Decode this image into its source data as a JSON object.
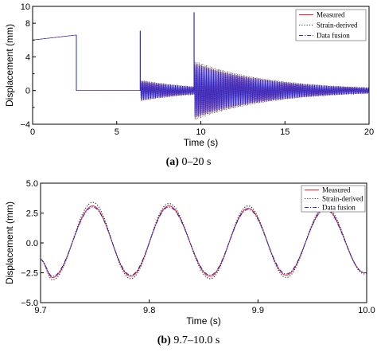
{
  "chart_data": [
    {
      "type": "line",
      "xlabel": "Time (s)",
      "ylabel": "Displacement (mm)",
      "xlim": [
        0,
        20
      ],
      "ylim": [
        -4,
        10
      ],
      "xticks": [
        "0",
        "5",
        "10",
        "15",
        "20"
      ],
      "yticks": [
        "-4",
        "0",
        "4",
        "8"
      ],
      "extra_ytick": "10",
      "y_minor_ticks": [
        "-2",
        "2",
        "6"
      ],
      "caption_label": "(a)",
      "caption_text": " 0–20 s",
      "legend_position": "top-right",
      "series": [
        {
          "name": "Measured",
          "color": "#e8282d",
          "style": "solid"
        },
        {
          "name": "Strain-derived",
          "color": "#333333",
          "style": "dotted"
        },
        {
          "name": "Data fusion",
          "color": "#2a2ad6",
          "style": "dashdot"
        }
      ],
      "events": [
        {
          "t": 0.0,
          "desc": "initial offset",
          "level_start": 6.0,
          "level_end": 6.6
        },
        {
          "t": 2.6,
          "desc": "drop to zero"
        },
        {
          "t": 6.4,
          "peak": 7.1,
          "amp": 1.2,
          "decay": 0.3
        },
        {
          "t": 9.6,
          "peak": 9.3,
          "amp": 3.3,
          "decay": 0.22
        }
      ]
    },
    {
      "type": "line",
      "xlabel": "Time (s)",
      "ylabel": "Displacement (mm)",
      "xlim": [
        9.7,
        10.0
      ],
      "ylim": [
        -5.0,
        5.0
      ],
      "xticks": [
        "9.7",
        "9.8",
        "9.9",
        "10.0"
      ],
      "yticks": [
        "-5.0",
        "-2.5",
        "0.0",
        "2.5",
        "5.0"
      ],
      "caption_label": "(b)",
      "caption_text": " 9.7–10.0 s",
      "legend_position": "top-right",
      "series": [
        {
          "name": "Measured",
          "color": "#e8282d",
          "style": "solid",
          "peaks": [
            [
              9.748,
              3.1
            ],
            [
              9.818,
              3.1
            ],
            [
              9.891,
              2.9
            ],
            [
              9.962,
              2.9
            ]
          ],
          "troughs": [
            [
              9.711,
              -2.9
            ],
            [
              9.783,
              -2.8
            ],
            [
              9.856,
              -2.8
            ],
            [
              9.926,
              -2.7
            ],
            [
              9.998,
              -2.5
            ]
          ]
        },
        {
          "name": "Strain-derived",
          "color": "#333333",
          "style": "dotted",
          "peaks": [
            [
              9.748,
              3.4
            ],
            [
              9.818,
              3.3
            ],
            [
              9.891,
              3.1
            ],
            [
              9.962,
              3.1
            ]
          ],
          "troughs": [
            [
              9.711,
              -3.1
            ],
            [
              9.783,
              -3.0
            ],
            [
              9.856,
              -3.0
            ],
            [
              9.926,
              -2.9
            ],
            [
              9.998,
              -2.6
            ]
          ]
        },
        {
          "name": "Data fusion",
          "color": "#2a2ad6",
          "style": "dashdot",
          "peaks": [
            [
              9.748,
              3.0
            ],
            [
              9.818,
              3.0
            ],
            [
              9.891,
              2.8
            ],
            [
              9.962,
              2.8
            ]
          ],
          "troughs": [
            [
              9.711,
              -2.8
            ],
            [
              9.783,
              -2.7
            ],
            [
              9.856,
              -2.7
            ],
            [
              9.926,
              -2.6
            ],
            [
              9.998,
              -2.5
            ]
          ]
        }
      ]
    }
  ]
}
